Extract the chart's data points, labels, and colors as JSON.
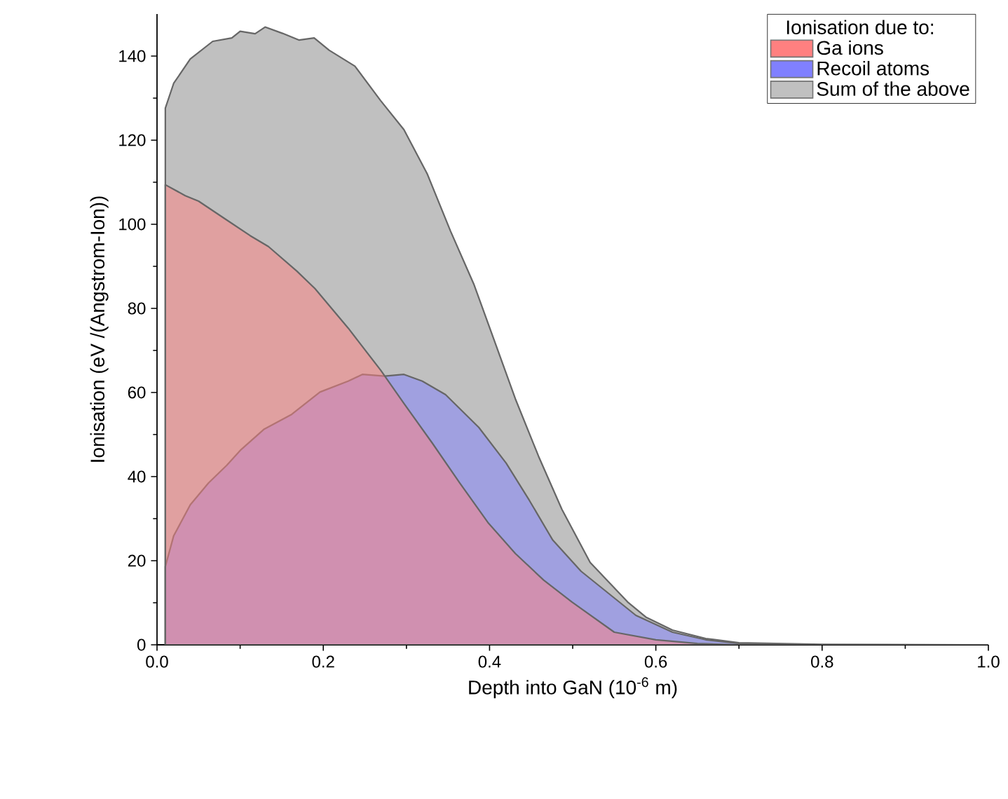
{
  "chart_data": {
    "type": "area",
    "xlabel": "Depth into GaN (10$^{-6}$ m)",
    "ylabel": "Ionisation (eV /(Angstrom-Ion))",
    "legend_title": "Ionisation due to:",
    "legend": "top right",
    "grid": false,
    "xlim": [
      0,
      1
    ],
    "ylim": [
      0,
      150
    ],
    "xticks": [
      {
        "value": 0,
        "label": "0.0"
      },
      {
        "value": 0.2,
        "label": "0.2"
      },
      {
        "value": 0.4,
        "label": "0.4"
      },
      {
        "value": 0.6,
        "label": "0.6"
      },
      {
        "value": 0.8,
        "label": "0.8"
      },
      {
        "value": 1.0,
        "label": "1.0"
      }
    ],
    "yticks": [
      0,
      20,
      40,
      60,
      80,
      100,
      120,
      140
    ],
    "series": [
      {
        "name": "Ga ions",
        "color": "#ff8080",
        "x": [
          0.01,
          0.034,
          0.05,
          0.084,
          0.112,
          0.134,
          0.168,
          0.19,
          0.23,
          0.269,
          0.297,
          0.331,
          0.364,
          0.398,
          0.431,
          0.465,
          0.499,
          0.55,
          0.6,
          0.65,
          0.7,
          1.0
        ],
        "values": [
          109.4,
          106.8,
          105.5,
          101,
          97.3,
          94.7,
          88.9,
          84.7,
          75.3,
          65.3,
          57.4,
          48,
          38.5,
          29.1,
          21.7,
          15.4,
          10.2,
          3,
          1.2,
          0.3,
          0,
          0
        ]
      },
      {
        "name": "Recoil atoms",
        "color": "#8080ff",
        "x": [
          0.01,
          0.02,
          0.04,
          0.062,
          0.084,
          0.101,
          0.129,
          0.162,
          0.196,
          0.23,
          0.247,
          0.274,
          0.297,
          0.319,
          0.347,
          0.387,
          0.42,
          0.448,
          0.476,
          0.51,
          0.576,
          0.62,
          0.66,
          0.7,
          0.8,
          1.0
        ],
        "values": [
          18.6,
          25.9,
          33.3,
          38.5,
          42.7,
          46.4,
          51.3,
          54.8,
          60.1,
          62.7,
          64.3,
          63.9,
          64.3,
          62.7,
          59.5,
          51.7,
          43.2,
          34.3,
          24.9,
          17.5,
          7,
          3,
          1.2,
          0.3,
          0,
          0
        ]
      },
      {
        "name": "Sum of the above",
        "color": "#c0c0c0",
        "x": [
          0.01,
          0.02,
          0.04,
          0.067,
          0.09,
          0.1,
          0.118,
          0.13,
          0.151,
          0.171,
          0.189,
          0.207,
          0.238,
          0.269,
          0.297,
          0.325,
          0.353,
          0.381,
          0.408,
          0.431,
          0.459,
          0.487,
          0.521,
          0.566,
          0.588,
          0.62,
          0.66,
          0.7,
          0.8,
          1.0
        ],
        "values": [
          127.6,
          133.5,
          139.3,
          143.5,
          144.3,
          145.9,
          145.3,
          146.9,
          145.4,
          143.8,
          144.3,
          141.4,
          137.6,
          129.4,
          122.5,
          112,
          98.4,
          85.8,
          71.1,
          58.5,
          44.8,
          32.2,
          19.6,
          10.2,
          6.6,
          3.5,
          1.5,
          0.5,
          0.1,
          0
        ]
      }
    ]
  }
}
